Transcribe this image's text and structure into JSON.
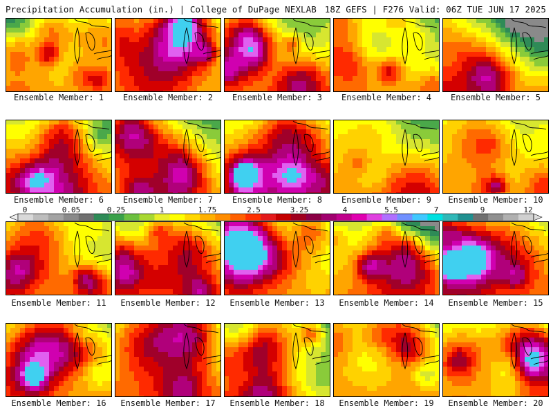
{
  "header": {
    "left": "Precipitation Accumulation (in.) | College of DuPage NEXLAB",
    "right": "18Z GEFS | F276 Valid: 06Z TUE JUN 17 2025"
  },
  "members": [
    {
      "label": "Ensemble Member: 1"
    },
    {
      "label": "Ensemble Member: 2"
    },
    {
      "label": "Ensemble Member: 3"
    },
    {
      "label": "Ensemble Member: 4"
    },
    {
      "label": "Ensemble Member: 5"
    },
    {
      "label": "Ensemble Member: 6"
    },
    {
      "label": "Ensemble Member: 7"
    },
    {
      "label": "Ensemble Member: 8"
    },
    {
      "label": "Ensemble Member: 9"
    },
    {
      "label": "Ensemble Member: 10"
    },
    {
      "label": "Ensemble Member: 11"
    },
    {
      "label": "Ensemble Member: 12"
    },
    {
      "label": "Ensemble Member: 13"
    },
    {
      "label": "Ensemble Member: 14"
    },
    {
      "label": "Ensemble Member: 15"
    },
    {
      "label": "Ensemble Member: 16"
    },
    {
      "label": "Ensemble Member: 17"
    },
    {
      "label": "Ensemble Member: 18"
    },
    {
      "label": "Ensemble Member: 19"
    },
    {
      "label": "Ensemble Member: 20"
    }
  ],
  "colorbar": {
    "tick_labels": [
      "0",
      "0.05",
      "0.25",
      "1",
      "1.75",
      "2.5",
      "3.25",
      "4",
      "5.5",
      "7",
      "9",
      "12"
    ],
    "colors": [
      "#d9d9d9",
      "#bdbdbd",
      "#a3a3a3",
      "#8a8a8a",
      "#707070",
      "#2e8b57",
      "#3aa04a",
      "#6cc040",
      "#a8d832",
      "#e8ef2a",
      "#ffff00",
      "#ffd700",
      "#ffb000",
      "#ff8c00",
      "#ff6000",
      "#ff3000",
      "#e41a1c",
      "#c40000",
      "#a0001e",
      "#8b0045",
      "#a0006e",
      "#c0008c",
      "#e000b0",
      "#e040e0",
      "#b070ff",
      "#7090ff",
      "#40c8ff",
      "#00e0e0",
      "#30b8b8",
      "#209090",
      "#707070",
      "#909090",
      "#b0b0b0",
      "#d0d0d0"
    ]
  }
}
